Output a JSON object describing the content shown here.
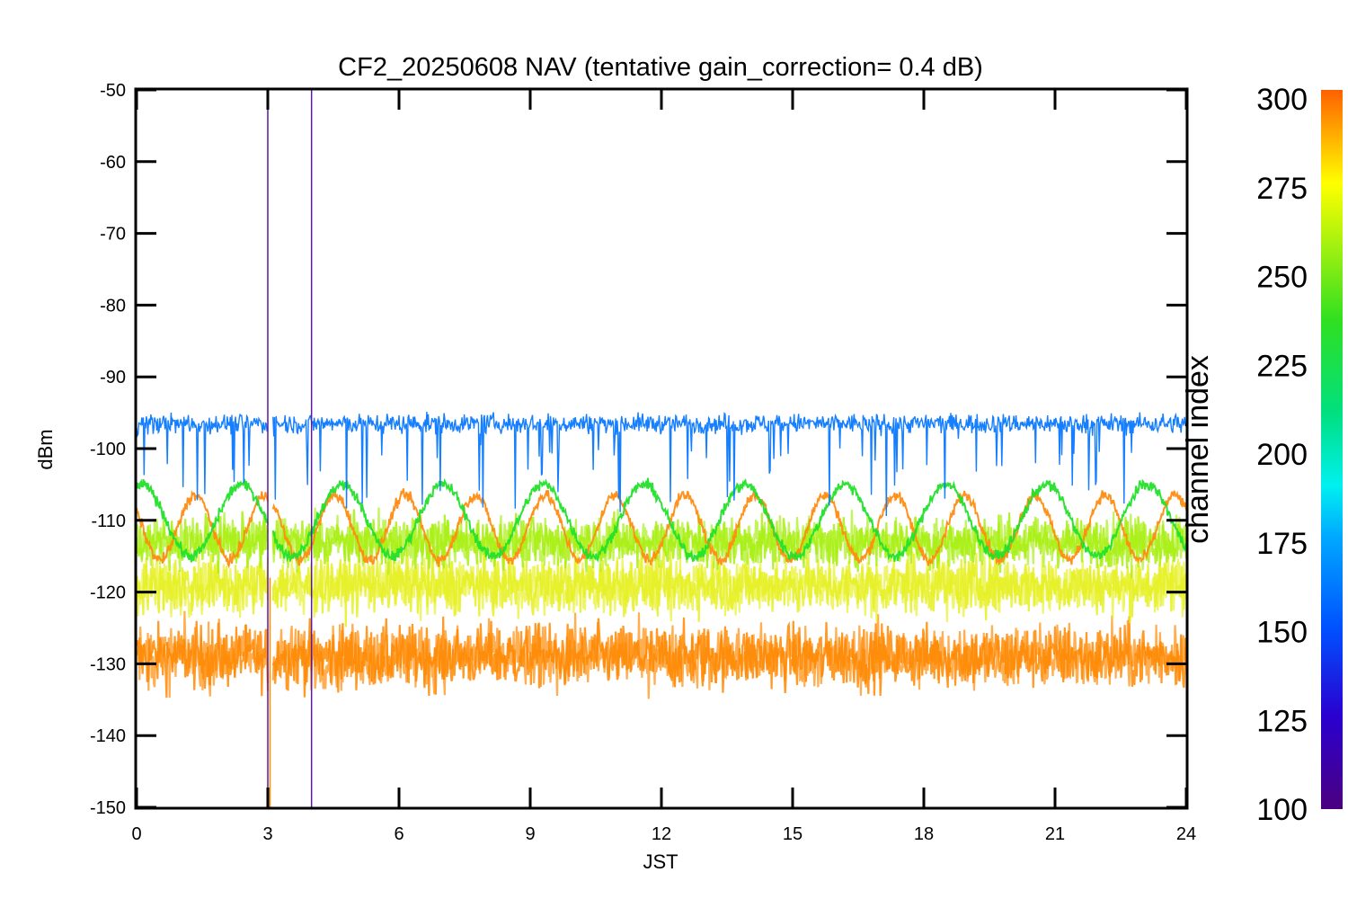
{
  "chart_data": {
    "type": "line",
    "title": "CF2_20250608 NAV (tentative gain_correction=  0.4 dB)",
    "xlabel": "JST",
    "ylabel": "dBm",
    "xlim": [
      0,
      24
    ],
    "ylim": [
      -150,
      -50
    ],
    "x_ticks": [
      "0",
      "3",
      "6",
      "9",
      "12",
      "15",
      "18",
      "21",
      "24"
    ],
    "y_ticks": [
      "-50",
      "-60",
      "-70",
      "-80",
      "-90",
      "-100",
      "-110",
      "-120",
      "-130",
      "-140",
      "-150"
    ],
    "grid": false,
    "colorbar": {
      "label": "channel index",
      "range": [
        100,
        300
      ],
      "ticks": [
        "300",
        "275",
        "250",
        "225",
        "200",
        "175",
        "150",
        "125",
        "100"
      ],
      "colormap": "rainbow"
    },
    "series": [
      {
        "channel": 155,
        "color": "#0a78ff",
        "mean": -96.5,
        "spread": 1.4,
        "dips": true
      },
      {
        "channel": 235,
        "color": "#22e02a",
        "mean": -110,
        "amplitude": 5,
        "period_h": 2.3
      },
      {
        "channel": 282,
        "color": "#ff8c10",
        "mean": -111,
        "amplitude": 4.5,
        "period_h": 1.6
      },
      {
        "channel": 258,
        "color": "#a8ef10",
        "mean": -113,
        "spread": 3.5
      },
      {
        "channel": 270,
        "color": "#e6f020",
        "mean": -119,
        "spread": 4
      },
      {
        "channel": 285,
        "color": "#ff8800",
        "mean": -129,
        "spread": 4.5
      }
    ],
    "spikes": [
      {
        "x": 3.0,
        "ymax": -52,
        "color": "#5a1a9c"
      },
      {
        "x": 4.0,
        "ymax": -50,
        "color": "#5a1a9c"
      },
      {
        "x": 3.05,
        "ymax": -150,
        "color": "#ff8800"
      }
    ],
    "gap": {
      "x_start": 3.0,
      "x_end": 3.12
    }
  }
}
